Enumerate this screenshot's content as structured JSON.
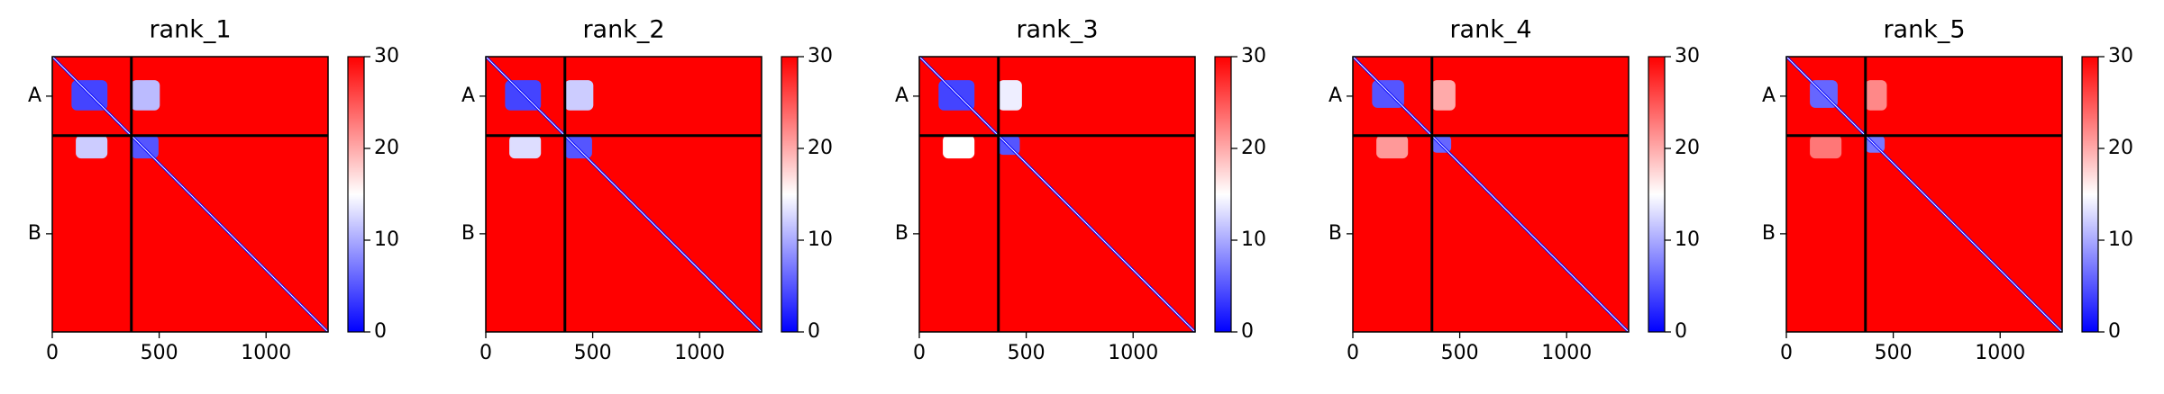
{
  "chart_data": [
    {
      "type": "heatmap",
      "title": "rank_1",
      "xlim": [
        0,
        1290
      ],
      "ylim": [
        1290,
        0
      ],
      "xticks": [
        0,
        500,
        1000
      ],
      "yticks": [
        {
          "value": 185,
          "label": "A"
        },
        {
          "value": 830,
          "label": "B"
        }
      ],
      "chain_breaks": [
        370
      ],
      "base_value": 30,
      "blocks": [
        {
          "x": [
            90,
            258
          ],
          "y": [
            110,
            252
          ],
          "value": 4
        },
        {
          "x": [
            368,
            503
          ],
          "y": [
            110,
            252
          ],
          "value": 11
        },
        {
          "x": [
            110,
            258
          ],
          "y": [
            368,
            477
          ],
          "value": 12
        },
        {
          "x": [
            368,
            497
          ],
          "y": [
            368,
            477
          ],
          "value": 5
        }
      ],
      "clim": [
        0,
        30
      ],
      "cticks": [
        0,
        10,
        20,
        30
      ],
      "colormap": [
        "#0000ff",
        "#ffffff",
        "#ff0000"
      ]
    },
    {
      "type": "heatmap",
      "title": "rank_2",
      "xlim": [
        0,
        1290
      ],
      "ylim": [
        1290,
        0
      ],
      "xticks": [
        0,
        500,
        1000
      ],
      "yticks": [
        {
          "value": 185,
          "label": "A"
        },
        {
          "value": 830,
          "label": "B"
        }
      ],
      "chain_breaks": [
        370
      ],
      "base_value": 30,
      "blocks": [
        {
          "x": [
            90,
            258
          ],
          "y": [
            110,
            252
          ],
          "value": 4
        },
        {
          "x": [
            368,
            503
          ],
          "y": [
            110,
            252
          ],
          "value": 12
        },
        {
          "x": [
            110,
            258
          ],
          "y": [
            368,
            477
          ],
          "value": 13
        },
        {
          "x": [
            368,
            497
          ],
          "y": [
            368,
            477
          ],
          "value": 5
        }
      ],
      "clim": [
        0,
        30
      ],
      "cticks": [
        0,
        10,
        20,
        30
      ],
      "colormap": [
        "#0000ff",
        "#ffffff",
        "#ff0000"
      ]
    },
    {
      "type": "heatmap",
      "title": "rank_3",
      "xlim": [
        0,
        1290
      ],
      "ylim": [
        1290,
        0
      ],
      "xticks": [
        0,
        500,
        1000
      ],
      "yticks": [
        {
          "value": 185,
          "label": "A"
        },
        {
          "value": 830,
          "label": "B"
        }
      ],
      "chain_breaks": [
        370
      ],
      "base_value": 30,
      "blocks": [
        {
          "x": [
            90,
            258
          ],
          "y": [
            110,
            252
          ],
          "value": 4
        },
        {
          "x": [
            368,
            480
          ],
          "y": [
            110,
            252
          ],
          "value": 14
        },
        {
          "x": [
            110,
            258
          ],
          "y": [
            368,
            477
          ],
          "value": 15
        },
        {
          "x": [
            368,
            470
          ],
          "y": [
            368,
            460
          ],
          "value": 5
        }
      ],
      "clim": [
        0,
        30
      ],
      "cticks": [
        0,
        10,
        20,
        30
      ],
      "colormap": [
        "#0000ff",
        "#ffffff",
        "#ff0000"
      ]
    },
    {
      "type": "heatmap",
      "title": "rank_4",
      "xlim": [
        0,
        1290
      ],
      "ylim": [
        1290,
        0
      ],
      "xticks": [
        0,
        500,
        1000
      ],
      "yticks": [
        {
          "value": 185,
          "label": "A"
        },
        {
          "value": 830,
          "label": "B"
        }
      ],
      "chain_breaks": [
        370
      ],
      "base_value": 30,
      "blocks": [
        {
          "x": [
            90,
            240
          ],
          "y": [
            110,
            240
          ],
          "value": 5
        },
        {
          "x": [
            368,
            480
          ],
          "y": [
            110,
            252
          ],
          "value": 20
        },
        {
          "x": [
            110,
            258
          ],
          "y": [
            368,
            477
          ],
          "value": 21
        },
        {
          "x": [
            368,
            460
          ],
          "y": [
            368,
            450
          ],
          "value": 6
        }
      ],
      "clim": [
        0,
        30
      ],
      "cticks": [
        0,
        10,
        20,
        30
      ],
      "colormap": [
        "#0000ff",
        "#ffffff",
        "#ff0000"
      ]
    },
    {
      "type": "heatmap",
      "title": "rank_5",
      "xlim": [
        0,
        1290
      ],
      "ylim": [
        1290,
        0
      ],
      "xticks": [
        0,
        500,
        1000
      ],
      "yticks": [
        {
          "value": 185,
          "label": "A"
        },
        {
          "value": 830,
          "label": "B"
        }
      ],
      "chain_breaks": [
        370
      ],
      "base_value": 30,
      "blocks": [
        {
          "x": [
            110,
            240
          ],
          "y": [
            110,
            240
          ],
          "value": 6
        },
        {
          "x": [
            368,
            470
          ],
          "y": [
            110,
            252
          ],
          "value": 22
        },
        {
          "x": [
            110,
            258
          ],
          "y": [
            368,
            477
          ],
          "value": 23
        },
        {
          "x": [
            368,
            460
          ],
          "y": [
            368,
            450
          ],
          "value": 7
        }
      ],
      "clim": [
        0,
        30
      ],
      "cticks": [
        0,
        10,
        20,
        30
      ],
      "colormap": [
        "#0000ff",
        "#ffffff",
        "#ff0000"
      ]
    }
  ]
}
